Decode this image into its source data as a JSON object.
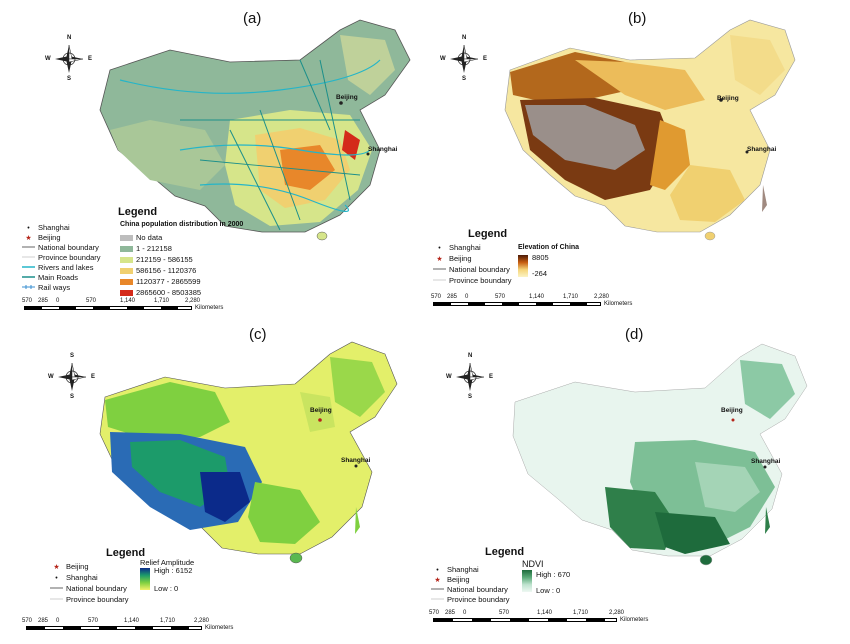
{
  "panels": [
    {
      "label": "(a)",
      "legend_title": "Legend",
      "layer_title": "China population distribution in 2000",
      "cities": [
        "Beijing",
        "Shanghai"
      ],
      "left_items": [
        {
          "symbol": "dot",
          "label": "Shanghai"
        },
        {
          "symbol": "star",
          "label": "Beijing"
        },
        {
          "symbol": "line-dark",
          "label": "National boundary"
        },
        {
          "symbol": "line-light",
          "label": "Province boundary"
        },
        {
          "symbol": "line-cyan",
          "label": "Rivers and lakes"
        },
        {
          "symbol": "line-teal",
          "label": "Main Roads"
        },
        {
          "symbol": "rail",
          "label": "Rail ways"
        }
      ],
      "classes": [
        {
          "label": "No data",
          "color": "#bdbdbd"
        },
        {
          "label": "1 - 212158",
          "color": "#8fb89a"
        },
        {
          "label": "212159 - 586155",
          "color": "#d6e58a"
        },
        {
          "label": "586156 - 1120376",
          "color": "#f0d070"
        },
        {
          "label": "1120377 - 2865599",
          "color": "#e8872a"
        },
        {
          "label": "2865600 - 8503385",
          "color": "#d42a1a"
        }
      ]
    },
    {
      "label": "(b)",
      "legend_title": "Legend",
      "layer_title": "Elevation of China",
      "cities": [
        "Beijing",
        "Shanghai"
      ],
      "left_items": [
        {
          "symbol": "dot",
          "label": "Shanghai"
        },
        {
          "symbol": "star",
          "label": "Beijing"
        },
        {
          "symbol": "line-dark",
          "label": "National boundary"
        },
        {
          "symbol": "line-light",
          "label": "Province boundary"
        }
      ],
      "gradient": {
        "high": "8805",
        "low": "-264",
        "colors": [
          "#4a1a08",
          "#c65c10",
          "#f5d57a",
          "#fbf3c4"
        ]
      }
    },
    {
      "label": "(c)",
      "legend_title": "Legend",
      "layer_title": "Relief Amplitude",
      "cities": [
        "Beijing",
        "Shanghai"
      ],
      "left_items": [
        {
          "symbol": "star",
          "label": "Beijing"
        },
        {
          "symbol": "dot",
          "label": "Shanghai"
        },
        {
          "symbol": "line-dark",
          "label": "National boundary"
        },
        {
          "symbol": "line-light",
          "label": "Province boundary"
        }
      ],
      "gradient": {
        "high": "High : 6152",
        "low": "Low : 0",
        "colors": [
          "#0b2a8a",
          "#1c9b6a",
          "#7fd040",
          "#f4f26a"
        ]
      }
    },
    {
      "label": "(d)",
      "legend_title": "Legend",
      "layer_title": "NDVI",
      "cities": [
        "Beijing",
        "Shanghai"
      ],
      "left_items": [
        {
          "symbol": "dot",
          "label": "Shanghai"
        },
        {
          "symbol": "star",
          "label": "Beijing"
        },
        {
          "symbol": "line-dark",
          "label": "National boundary"
        },
        {
          "symbol": "line-light",
          "label": "Province boundary"
        }
      ],
      "gradient": {
        "high": "High : 670",
        "low": "Low : 0",
        "colors": [
          "#1e6b3c",
          "#5aaa78",
          "#bfe3cf",
          "#eef8f2"
        ]
      }
    }
  ],
  "compass": {
    "n": "N",
    "s": "S",
    "e": "E",
    "w": "W"
  },
  "scale": {
    "ticks": [
      "570",
      "285",
      "0",
      "570",
      "1,140",
      "1,710",
      "2,280"
    ],
    "unit": "Kilometers"
  }
}
